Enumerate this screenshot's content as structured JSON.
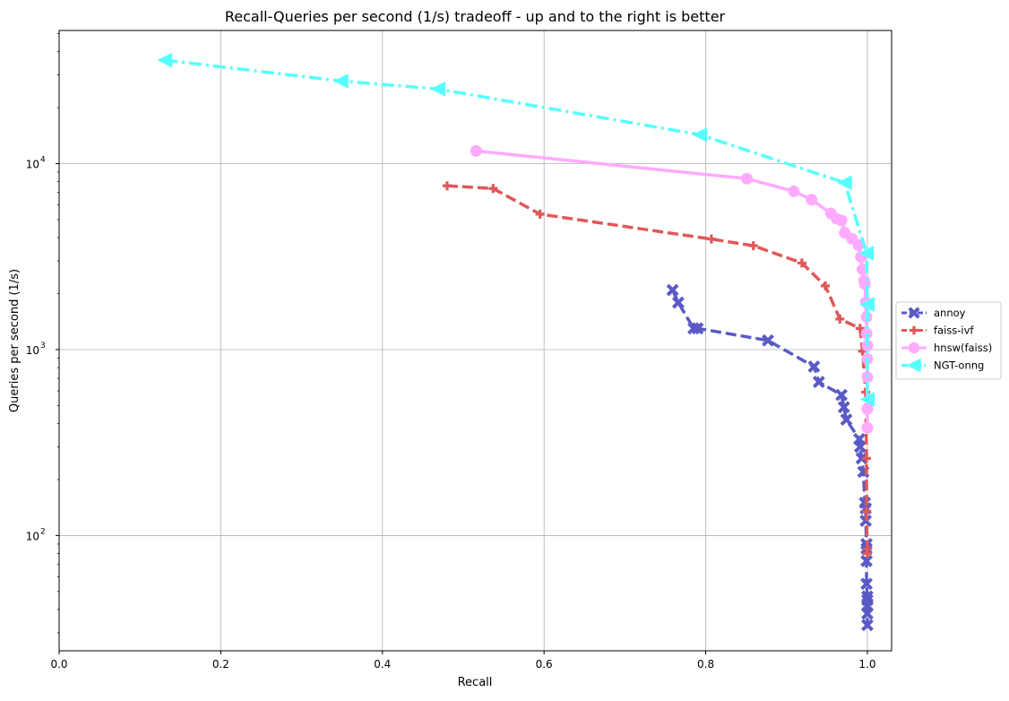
{
  "chart_data": {
    "type": "line",
    "title": "Recall-Queries per second (1/s) tradeoff - up and to the right is better",
    "xlabel": "Recall",
    "ylabel": "Queries per second (1/s)",
    "xlim": [
      0.0,
      1.03
    ],
    "ylim": [
      24,
      52000
    ],
    "yscale": "log",
    "grid": true,
    "legend_position": "right-outside",
    "x_ticks": [
      {
        "value": 0.0,
        "label": "0.0"
      },
      {
        "value": 0.2,
        "label": "0.2"
      },
      {
        "value": 0.4,
        "label": "0.4"
      },
      {
        "value": 0.6,
        "label": "0.6"
      },
      {
        "value": 0.8,
        "label": "0.8"
      },
      {
        "value": 1.0,
        "label": "1.0"
      }
    ],
    "y_ticks": [
      {
        "value": 100,
        "base": "10",
        "exp": "2"
      },
      {
        "value": 1000,
        "base": "10",
        "exp": "3"
      },
      {
        "value": 10000,
        "base": "10",
        "exp": "4"
      }
    ],
    "series": [
      {
        "name": "annoy",
        "color": "#5a5ac6",
        "dash": "dashed",
        "marker": "x",
        "x": [
          0.759,
          0.766,
          0.785,
          0.79,
          0.877,
          0.934,
          0.94,
          0.968,
          0.971,
          0.974,
          0.99,
          0.991,
          0.993,
          0.995,
          0.997,
          0.998,
          0.998,
          0.999,
          0.999,
          0.999,
          0.999,
          1.0,
          1.0,
          1.0,
          1.0,
          1.0
        ],
        "y": [
          2090,
          1790,
          1300,
          1300,
          1120,
          810,
          670,
          570,
          490,
          420,
          330,
          300,
          260,
          220,
          150,
          140,
          120,
          90,
          85,
          73,
          55,
          47,
          45,
          42,
          38,
          33
        ]
      },
      {
        "name": "faiss-ivf",
        "color": "#e05858",
        "dash": "dashed",
        "marker": "plus",
        "x": [
          0.48,
          0.537,
          0.595,
          0.807,
          0.859,
          0.919,
          0.948,
          0.966,
          0.991,
          0.994,
          0.998,
          0.999,
          0.999,
          1.0,
          1.0
        ],
        "y": [
          7600,
          7350,
          5350,
          3930,
          3620,
          2920,
          2200,
          1460,
          1300,
          980,
          590,
          260,
          135,
          85,
          80
        ]
      },
      {
        "name": "hnsw(faiss)",
        "color": "#ffaaff",
        "dash": "solid",
        "marker": "circle",
        "x": [
          0.516,
          0.851,
          0.909,
          0.931,
          0.955,
          0.962,
          0.968,
          0.972,
          0.981,
          0.989,
          0.992,
          0.994,
          0.996,
          0.997,
          0.998,
          0.999,
          0.999,
          1.0,
          1.0,
          1.0,
          1.0,
          1.0
        ],
        "y": [
          11700,
          8300,
          7100,
          6400,
          5400,
          5050,
          4950,
          4250,
          3950,
          3650,
          3150,
          2700,
          2350,
          2250,
          1800,
          1500,
          1220,
          1050,
          890,
          710,
          480,
          380
        ]
      },
      {
        "name": "NGT-onng",
        "color": "#55ffff",
        "dash": "dashdot",
        "marker": "triangle-left",
        "x": [
          0.131,
          0.349,
          0.469,
          0.793,
          0.972,
          0.999,
          1.0,
          1.0
        ],
        "y": [
          36000,
          27800,
          25200,
          14300,
          7900,
          3300,
          1750,
          540
        ]
      }
    ]
  }
}
